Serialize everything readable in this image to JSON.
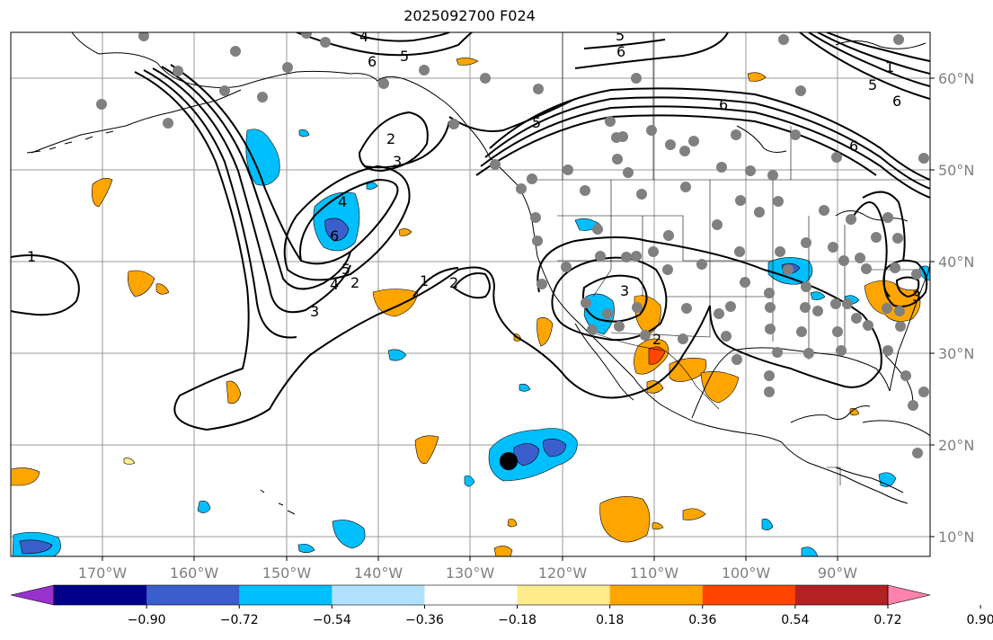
{
  "title": "2025092700 F024",
  "lat_labels": [
    "60°N",
    "50°N",
    "40°N",
    "30°N",
    "20°N",
    "10°N"
  ],
  "lon_labels": [
    "170°W",
    "160°W",
    "150°W",
    "140°W",
    "130°W",
    "120°W",
    "110°W",
    "100°W",
    "90°W"
  ],
  "colorbar": {
    "ticks": [
      "−0.90",
      "−0.72",
      "−0.54",
      "−0.36",
      "−0.18",
      "0.18",
      "0.36",
      "0.54",
      "0.72",
      "0.90"
    ],
    "colors": [
      "#9932cc",
      "#00008b",
      "#3a5fcd",
      "#00bfff",
      "#b0e2ff",
      "#ffffff",
      "#ffec8b",
      "#ffa500",
      "#ff4500",
      "#b22222",
      "#ff82ab"
    ]
  },
  "contour_labels": [
    "1",
    "2",
    "3",
    "4",
    "5",
    "6"
  ],
  "map_domain": {
    "lon_range": [
      "180°W",
      "80°W"
    ],
    "lat_range": [
      "8°N",
      "67°N"
    ]
  },
  "storm_marker": {
    "lon": -126,
    "lat": 18
  }
}
